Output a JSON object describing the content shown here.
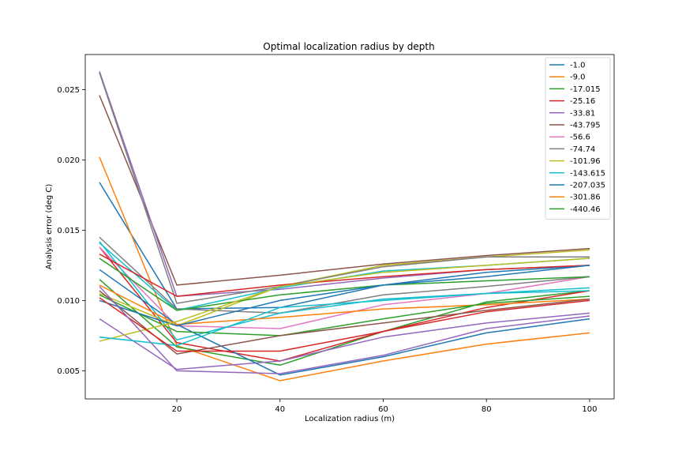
{
  "chart_data": {
    "type": "line",
    "title": "Optimal localization radius by depth",
    "xlabel": "Localization radius (m)",
    "ylabel": "Analysis error (deg C)",
    "x": [
      5,
      20,
      40,
      60,
      80,
      100
    ],
    "xlim": [
      2.25,
      104.75
    ],
    "ylim": [
      0.003,
      0.0275
    ],
    "xticks": [
      20,
      40,
      60,
      80,
      100
    ],
    "xtick_labels": [
      "20",
      "40",
      "60",
      "80",
      "100"
    ],
    "yticks": [
      0.005,
      0.01,
      0.015,
      0.02,
      0.025
    ],
    "ytick_labels": [
      "0.005",
      "0.010",
      "0.015",
      "0.020",
      "0.025"
    ],
    "legend_position": "top-right",
    "series": [
      {
        "name": "-1.0",
        "color": "#1f77b4",
        "values": [
          0.0184,
          0.0094,
          0.0095,
          0.0111,
          0.012,
          0.0125
        ]
      },
      {
        "name": "-9.0",
        "color": "#ff7f0e",
        "values": [
          0.0202,
          0.0068,
          0.0043,
          0.0057,
          0.0069,
          0.0077
        ]
      },
      {
        "name": "-17.015",
        "color": "#2ca02c",
        "values": [
          0.0115,
          0.0067,
          0.0054,
          0.0078,
          0.0099,
          0.0107
        ]
      },
      {
        "name": "-25.16",
        "color": "#d62728",
        "values": [
          0.0138,
          0.007,
          0.0057,
          0.0078,
          0.0095,
          0.0107
        ]
      },
      {
        "name": "-33.81",
        "color": "#9467bd",
        "values": [
          0.0087,
          0.0051,
          0.0057,
          0.0074,
          0.0084,
          0.0091
        ]
      },
      {
        "name": "-43.795",
        "color": "#8c564b",
        "values": [
          0.0246,
          0.0111,
          0.0118,
          0.0126,
          0.0132,
          0.0137
        ]
      },
      {
        "name": "-56.6",
        "color": "#e377c2",
        "values": [
          0.0138,
          0.0082,
          0.008,
          0.0097,
          0.0105,
          0.0117
        ]
      },
      {
        "name": "-74.74",
        "color": "#7f7f7f",
        "values": [
          0.0145,
          0.0094,
          0.0091,
          0.0104,
          0.011,
          0.0117
        ]
      },
      {
        "name": "-101.96",
        "color": "#bcbd22",
        "values": [
          0.0105,
          0.0082,
          0.011,
          0.0125,
          0.0131,
          0.0136
        ]
      },
      {
        "name": "-143.615",
        "color": "#17becf",
        "values": [
          0.0142,
          0.0072,
          0.0091,
          0.0101,
          0.0105,
          0.0109
        ]
      },
      {
        "name": "-207.035",
        "color": "#1f77b4",
        "values": [
          0.0122,
          0.0083,
          0.0047,
          0.006,
          0.0077,
          0.0087
        ]
      },
      {
        "name": "-301.86",
        "color": "#ff7f0e",
        "values": [
          0.0111,
          0.0083,
          0.0088,
          0.0094,
          0.0097,
          0.0101
        ]
      },
      {
        "name": "-440.46",
        "color": "#2ca02c",
        "values": [
          0.0104,
          0.0078,
          0.0075,
          0.0087,
          0.0098,
          0.0103
        ]
      },
      {
        "name": "",
        "color": "#9467bd",
        "values": [
          0.0263,
          0.0103,
          0.0108,
          0.0116,
          0.0122,
          0.0125
        ]
      },
      {
        "name": "",
        "color": "#7f7f7f",
        "values": [
          0.0262,
          0.0098,
          0.011,
          0.0124,
          0.0131,
          0.0131
        ]
      },
      {
        "name": "",
        "color": "#17becf",
        "values": [
          0.0141,
          0.0093,
          0.0109,
          0.0121,
          0.0125,
          0.013
        ]
      },
      {
        "name": "",
        "color": "#d62728",
        "values": [
          0.0133,
          0.0103,
          0.0111,
          0.0117,
          0.0122,
          0.0125
        ]
      },
      {
        "name": "",
        "color": "#2ca02c",
        "values": [
          0.013,
          0.0093,
          0.0104,
          0.0111,
          0.0114,
          0.0117
        ]
      },
      {
        "name": "",
        "color": "#8c564b",
        "values": [
          0.0107,
          0.0062,
          0.0075,
          0.0084,
          0.0093,
          0.0101
        ]
      },
      {
        "name": "",
        "color": "#1f77b4",
        "values": [
          0.01,
          0.0082,
          0.01,
          0.0111,
          0.0117,
          0.0125
        ]
      },
      {
        "name": "",
        "color": "#bcbd22",
        "values": [
          0.0071,
          0.0085,
          0.011,
          0.012,
          0.0125,
          0.013
        ]
      },
      {
        "name": "",
        "color": "#17becf",
        "values": [
          0.0074,
          0.0068,
          0.0095,
          0.01,
          0.0105,
          0.0107
        ]
      },
      {
        "name": "",
        "color": "#d62728",
        "values": [
          0.0102,
          0.0064,
          0.0064,
          0.0078,
          0.0092,
          0.01
        ]
      },
      {
        "name": "",
        "color": "#9467bd",
        "values": [
          0.011,
          0.005,
          0.0048,
          0.0061,
          0.008,
          0.0089
        ]
      }
    ]
  }
}
